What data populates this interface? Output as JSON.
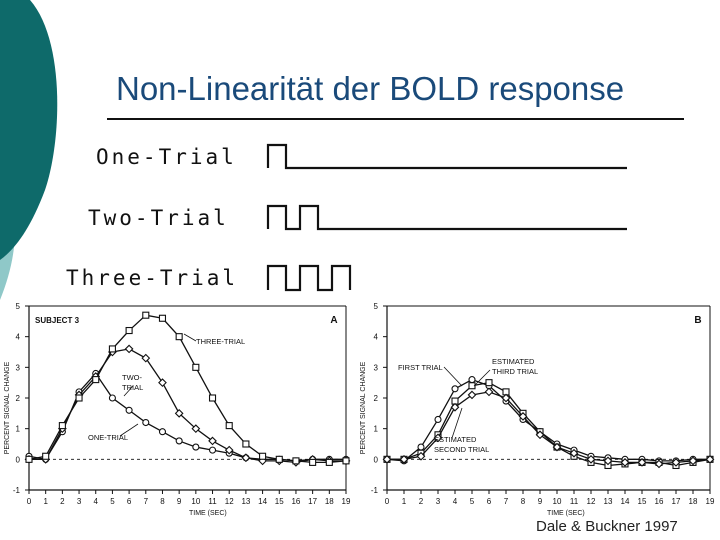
{
  "slide": {
    "title": "Non-Linearität der BOLD response",
    "credit": "Dale & Buckner 1997",
    "accent_dark": "#0e6a6a",
    "accent_light": "#8fc8c8"
  },
  "stimulus": {
    "labels": [
      "One-Trial",
      "Two-Trial",
      "Three-Trial"
    ]
  },
  "chart_data": [
    {
      "type": "line",
      "panel": "A",
      "subject": "SUBJECT  3",
      "xlabel": "TIME (SEC)",
      "ylabel": "PERCENT SIGNAL CHANGE",
      "xlim": [
        0,
        19
      ],
      "ylim": [
        -1,
        5
      ],
      "x_ticks": [
        0,
        1,
        2,
        3,
        4,
        5,
        6,
        7,
        8,
        9,
        10,
        11,
        12,
        13,
        14,
        15,
        16,
        17,
        18,
        19
      ],
      "y_ticks": [
        -1,
        0,
        1,
        2,
        3,
        4,
        5
      ],
      "grid": false,
      "x": [
        0,
        1,
        2,
        3,
        4,
        5,
        6,
        7,
        8,
        9,
        10,
        11,
        12,
        13,
        14,
        15,
        16,
        17,
        18,
        19
      ],
      "series": [
        {
          "name": "ONE-TRIAL",
          "marker": "circle",
          "values": [
            0.1,
            0.0,
            0.9,
            2.2,
            2.8,
            2.0,
            1.6,
            1.2,
            0.9,
            0.6,
            0.4,
            0.3,
            0.2,
            0.05,
            0.0,
            0.0,
            -0.05,
            0.0,
            0.0,
            0.0
          ]
        },
        {
          "name": "TWO-TRIAL",
          "marker": "diamond",
          "values": [
            0.0,
            0.0,
            1.0,
            2.1,
            2.7,
            3.5,
            3.6,
            3.3,
            2.5,
            1.5,
            1.0,
            0.6,
            0.3,
            0.05,
            -0.05,
            -0.05,
            -0.1,
            0.0,
            -0.05,
            -0.05
          ]
        },
        {
          "name": "THREE-TRIAL",
          "marker": "square",
          "values": [
            0.0,
            0.1,
            1.1,
            2.0,
            2.6,
            3.6,
            4.2,
            4.7,
            4.6,
            4.0,
            3.0,
            2.0,
            1.1,
            0.5,
            0.1,
            0.0,
            -0.05,
            -0.1,
            -0.1,
            -0.05
          ]
        }
      ],
      "annotations": [
        "THREE-TRIAL",
        "TWO-\nTRIAL",
        "ONE-TRIAL"
      ]
    },
    {
      "type": "line",
      "panel": "B",
      "xlabel": "TIME (SEC)",
      "ylabel": "PERCENT SIGNAL CHANGE",
      "xlim": [
        0,
        19
      ],
      "ylim": [
        -1,
        5
      ],
      "x_ticks": [
        0,
        1,
        2,
        3,
        4,
        5,
        6,
        7,
        8,
        9,
        10,
        11,
        12,
        13,
        14,
        15,
        16,
        17,
        18,
        19
      ],
      "y_ticks": [
        -1,
        0,
        1,
        2,
        3,
        4,
        5
      ],
      "grid": false,
      "x": [
        0,
        1,
        2,
        3,
        4,
        5,
        6,
        7,
        8,
        9,
        10,
        11,
        12,
        13,
        14,
        15,
        16,
        17,
        18,
        19
      ],
      "series": [
        {
          "name": "FIRST TRIAL",
          "marker": "circle",
          "values": [
            0.0,
            -0.05,
            0.4,
            1.3,
            2.3,
            2.6,
            2.4,
            1.9,
            1.3,
            0.9,
            0.5,
            0.3,
            0.1,
            0.05,
            0.0,
            0.0,
            -0.05,
            -0.05,
            0.0,
            0.0
          ]
        },
        {
          "name": "ESTIMATED THIRD TRIAL",
          "marker": "square",
          "values": [
            0.0,
            0.0,
            0.2,
            0.8,
            1.9,
            2.4,
            2.5,
            2.2,
            1.5,
            0.9,
            0.4,
            0.1,
            -0.1,
            -0.2,
            -0.15,
            -0.1,
            -0.1,
            -0.2,
            -0.1,
            0.0
          ]
        },
        {
          "name": "ESTIMATED SECOND TRIAL",
          "marker": "diamond",
          "values": [
            0.0,
            0.0,
            0.1,
            0.7,
            1.7,
            2.1,
            2.2,
            2.0,
            1.4,
            0.8,
            0.4,
            0.2,
            0.0,
            -0.05,
            -0.1,
            -0.1,
            -0.15,
            -0.1,
            -0.05,
            0.0
          ]
        }
      ],
      "annotations": [
        "FIRST   TRIAL",
        "ESTIMATED\nTHIRD  TRIAL",
        "ESTIMATED\nSECOND  TRIAL"
      ]
    }
  ]
}
